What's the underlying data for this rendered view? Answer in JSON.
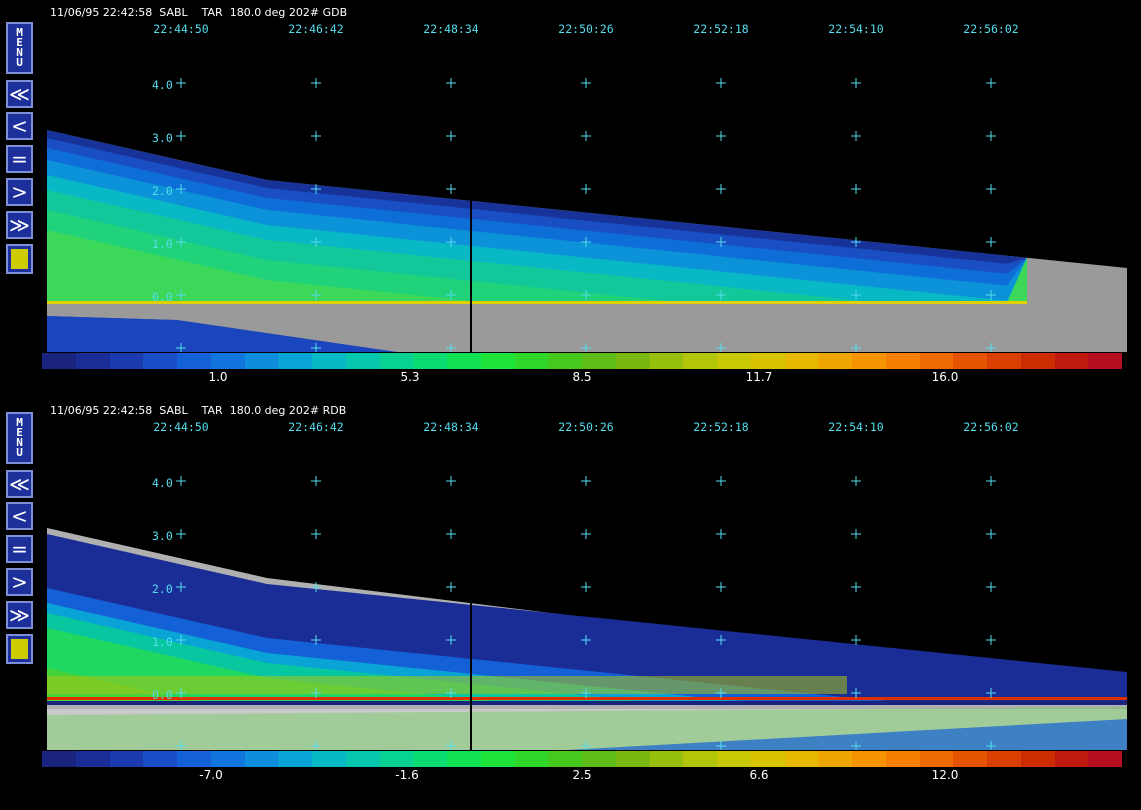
{
  "colors": {
    "background": "#000000",
    "grid_marker": "#55ddee",
    "control_button": "#1c2f9b",
    "control_border": "#7f8fd6",
    "swatch": "#cccc00",
    "cutoff_region": "#999999"
  },
  "controls": [
    {
      "name": "menu",
      "label": "MENU",
      "icon": "menu-button"
    },
    {
      "name": "fast-rewind",
      "label": "≪",
      "icon": "double-chevron-left-icon"
    },
    {
      "name": "step-back",
      "label": "<",
      "icon": "chevron-left-icon"
    },
    {
      "name": "pause",
      "label": "=",
      "icon": "equals-icon"
    },
    {
      "name": "step-forward",
      "label": ">",
      "icon": "chevron-right-icon"
    },
    {
      "name": "fast-forward",
      "label": "≫",
      "icon": "double-chevron-right-icon"
    },
    {
      "name": "color-swatch",
      "label": "",
      "icon": "yellow-swatch"
    }
  ],
  "panels": [
    {
      "id": "top",
      "header": "11/06/95 22:42:58  SABL    TAR  180.0 deg 202# GDB",
      "time_labels": [
        "22:44:50",
        "22:46:42",
        "22:48:34",
        "22:50:26",
        "22:52:18",
        "22:54:10",
        "22:56:02"
      ],
      "height_labels": [
        "4.0",
        "3.0",
        "2.0",
        "1.0",
        "0.0"
      ],
      "colorbar_labels": [
        "1.0",
        "5.3",
        "8.5",
        "11.7",
        "16.0"
      ]
    },
    {
      "id": "bottom",
      "header": "11/06/95 22:42:58  SABL    TAR  180.0 deg 202# RDB",
      "time_labels": [
        "22:44:50",
        "22:46:42",
        "22:48:34",
        "22:50:26",
        "22:52:18",
        "22:54:10",
        "22:56:02"
      ],
      "height_labels": [
        "4.0",
        "3.0",
        "2.0",
        "1.0",
        "0.0"
      ],
      "colorbar_labels": [
        "-7.0",
        "-1.6",
        "2.5",
        "6.6",
        "12.0"
      ]
    }
  ],
  "colorbar_colors": [
    "#1a237e",
    "#1a2d96",
    "#1a3aad",
    "#1a4cc6",
    "#1460d6",
    "#1075dc",
    "#0d8ddc",
    "#0aa3d5",
    "#08b8c6",
    "#06c7ad",
    "#07d291",
    "#0adb73",
    "#10e254",
    "#1ee43a",
    "#2fd72a",
    "#45c91f",
    "#5fbd17",
    "#7ab711",
    "#96be0c",
    "#b3c508",
    "#c9c804",
    "#d9c400",
    "#e6b800",
    "#f0a600",
    "#f59300",
    "#f57f00",
    "#ef6a00",
    "#e55500",
    "#d94000",
    "#cc2c00",
    "#c01a10",
    "#b80f20"
  ]
}
